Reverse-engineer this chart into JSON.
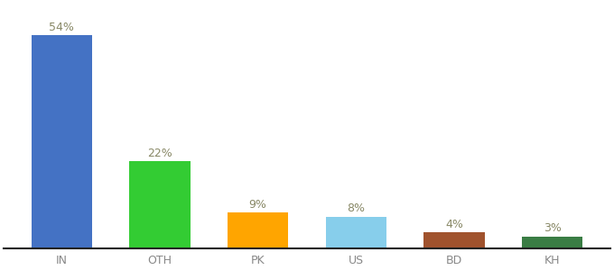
{
  "categories": [
    "IN",
    "OTH",
    "PK",
    "US",
    "BD",
    "KH"
  ],
  "values": [
    54,
    22,
    9,
    8,
    4,
    3
  ],
  "labels": [
    "54%",
    "22%",
    "9%",
    "8%",
    "4%",
    "3%"
  ],
  "bar_colors": [
    "#4472C4",
    "#33CC33",
    "#FFA500",
    "#87CEEB",
    "#A0522D",
    "#3A7D44"
  ],
  "ylim": [
    0,
    62
  ],
  "background_color": "#ffffff",
  "label_color": "#888866",
  "tick_color": "#888888",
  "spine_color": "#222222",
  "bar_width": 0.62
}
